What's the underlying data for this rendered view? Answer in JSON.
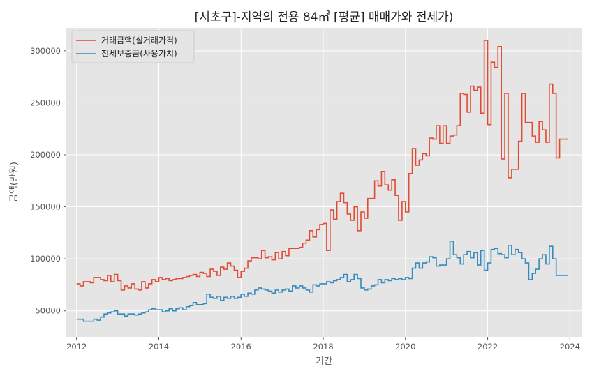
{
  "chart_data": {
    "type": "line",
    "step": true,
    "title": "[서초구]-지역의 전용 84㎡ [평균] 매매가와 전세가)",
    "xlabel": "기간",
    "ylabel": "금액(만원)",
    "xlim": [
      2011.75,
      2024.3
    ],
    "ylim": [
      25000,
      322000
    ],
    "x_ticks": [
      2012,
      2014,
      2016,
      2018,
      2020,
      2022,
      2024
    ],
    "y_ticks": [
      50000,
      100000,
      150000,
      200000,
      250000,
      300000
    ],
    "grid": true,
    "legend_position": "top-left",
    "x_start": 2012.0,
    "x_step": 0.08333,
    "series": [
      {
        "name": "거래금액(실거래가격)",
        "color": "#e24a33",
        "values": [
          76000,
          74000,
          78000,
          78000,
          77000,
          82000,
          82000,
          80000,
          79000,
          84000,
          78000,
          85000,
          79000,
          70000,
          74000,
          72000,
          76000,
          71000,
          70000,
          78000,
          72000,
          76000,
          80000,
          78000,
          82000,
          80000,
          81000,
          79000,
          80000,
          81000,
          81000,
          82000,
          83000,
          84000,
          85000,
          83000,
          87000,
          86000,
          83000,
          90000,
          88000,
          84000,
          92000,
          90000,
          96000,
          93000,
          89000,
          82000,
          88000,
          91000,
          98000,
          101000,
          101000,
          100000,
          108000,
          101000,
          102000,
          99000,
          106000,
          100000,
          107000,
          103000,
          110000,
          110000,
          110000,
          111000,
          115000,
          118000,
          127000,
          121000,
          128000,
          133000,
          134000,
          108000,
          147000,
          138000,
          155000,
          163000,
          154000,
          143000,
          137000,
          150000,
          127000,
          145000,
          139000,
          158000,
          158000,
          175000,
          170000,
          184000,
          171000,
          166000,
          176000,
          161000,
          137000,
          155000,
          145000,
          182000,
          206000,
          190000,
          195000,
          201000,
          199000,
          216000,
          215000,
          228000,
          211000,
          228000,
          211000,
          218000,
          219000,
          228000,
          259000,
          258000,
          241000,
          266000,
          262000,
          265000,
          240000,
          310000,
          229000,
          289000,
          284000,
          304000,
          196000,
          259000,
          178000,
          186000,
          186000,
          213000,
          259000,
          231000,
          231000,
          218000,
          212000,
          232000,
          224000,
          212000,
          268000,
          259000,
          197000,
          215000
        ],
        "line_end": 2023.95
      },
      {
        "name": "전세보증금(사용가치)",
        "color": "#348abd",
        "values": [
          42000,
          42000,
          40000,
          40000,
          40000,
          42000,
          41000,
          44000,
          47000,
          48000,
          49000,
          50000,
          47000,
          47000,
          45000,
          47000,
          47000,
          46000,
          47000,
          48000,
          49000,
          51000,
          52000,
          51000,
          51000,
          49000,
          50000,
          52000,
          50000,
          52000,
          53000,
          51000,
          54000,
          55000,
          58000,
          56000,
          56000,
          57000,
          66000,
          63000,
          62000,
          64000,
          60000,
          63000,
          62000,
          64000,
          62000,
          63000,
          66000,
          64000,
          67000,
          66000,
          70000,
          72000,
          71000,
          70000,
          69000,
          67000,
          70000,
          68000,
          70000,
          71000,
          69000,
          74000,
          72000,
          74000,
          72000,
          70000,
          68000,
          75000,
          74000,
          76000,
          76000,
          78000,
          77000,
          79000,
          80000,
          82000,
          85000,
          78000,
          80000,
          85000,
          81000,
          72000,
          70000,
          71000,
          74000,
          75000,
          80000,
          77000,
          80000,
          79000,
          81000,
          80000,
          81000,
          80000,
          82000,
          81000,
          91000,
          96000,
          91000,
          96000,
          97000,
          102000,
          101000,
          93000,
          94000,
          94000,
          100000,
          117000,
          104000,
          101000,
          95000,
          104000,
          107000,
          101000,
          106000,
          94000,
          108000,
          89000,
          96000,
          109000,
          110000,
          105000,
          104000,
          101000,
          113000,
          104000,
          109000,
          106000,
          100000,
          96000,
          80000,
          86000,
          90000,
          100000,
          104000,
          95000,
          112000,
          100000,
          84000
        ],
        "line_end": 2023.95
      }
    ]
  }
}
